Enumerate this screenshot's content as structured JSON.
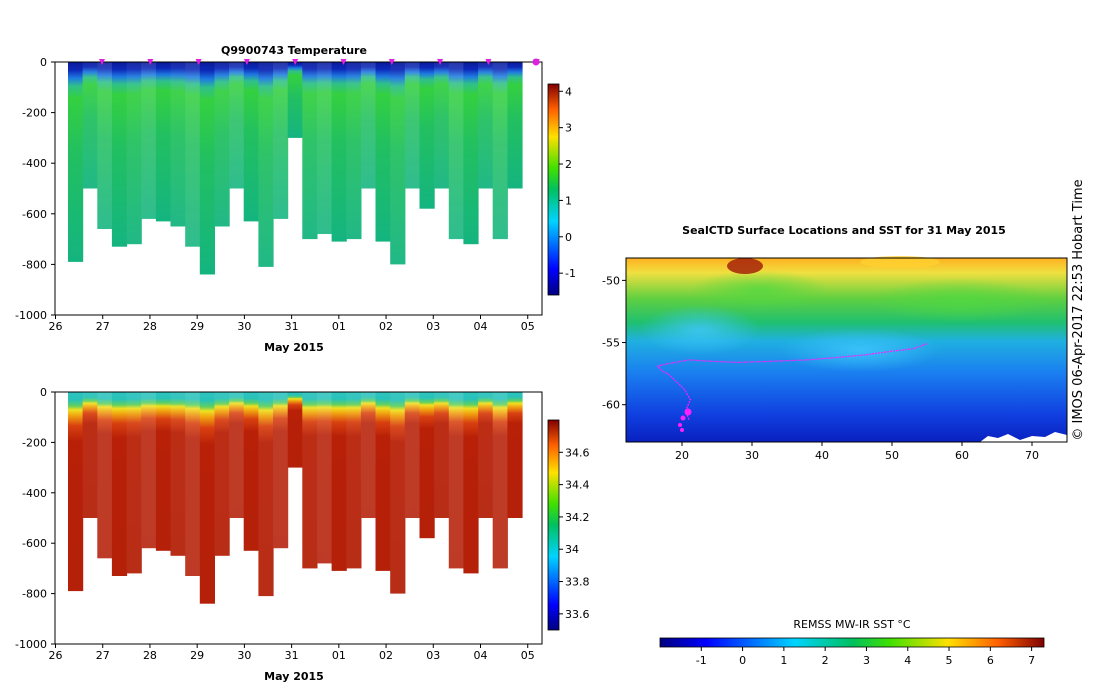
{
  "chart_data": [
    {
      "type": "heatmap",
      "title": "Q9900743  Temperature",
      "xlabel": "May 2015",
      "ylabel": "",
      "x_ticks": [
        "26",
        "27",
        "28",
        "29",
        "30",
        "31",
        "01",
        "02",
        "03",
        "04",
        "05"
      ],
      "y_ticks": [
        0,
        -200,
        -400,
        -600,
        -800,
        -1000
      ],
      "ylim": [
        -1000,
        0
      ],
      "colorbar": {
        "min": -1.6,
        "max": 4.2,
        "ticks": [
          4,
          3,
          2,
          1,
          0,
          -1
        ]
      },
      "profile_depths": [
        -790,
        -500,
        -660,
        -730,
        -720,
        -620,
        -630,
        -650,
        -730,
        -840,
        -650,
        -500,
        -630,
        -810,
        -620,
        -300,
        -700,
        -680,
        -710,
        -700,
        -500,
        -710,
        -800,
        -500,
        -580,
        -500,
        -700,
        -720,
        -500,
        -700,
        -500
      ],
      "surface_markers": 10
    },
    {
      "type": "heatmap",
      "title": "",
      "xlabel": "May 2015",
      "ylabel": "",
      "x_ticks": [
        "26",
        "27",
        "28",
        "29",
        "30",
        "31",
        "01",
        "02",
        "03",
        "04",
        "05"
      ],
      "y_ticks": [
        0,
        -200,
        -400,
        -600,
        -800,
        -1000
      ],
      "ylim": [
        -1000,
        0
      ],
      "colorbar": {
        "min": 33.5,
        "max": 34.8,
        "ticks": [
          "34.6",
          "34.4",
          "34.2",
          "34",
          "33.8",
          "33.6"
        ]
      },
      "profile_depths": [
        -790,
        -500,
        -660,
        -730,
        -720,
        -620,
        -630,
        -650,
        -730,
        -840,
        -650,
        -500,
        -630,
        -810,
        -620,
        -300,
        -700,
        -680,
        -710,
        -700,
        -500,
        -710,
        -800,
        -500,
        -580,
        -500,
        -700,
        -720,
        -500,
        -700,
        -500
      ]
    },
    {
      "type": "heatmap",
      "title": "SealCTD Surface Locations and SST for 31 May 2015",
      "xlabel": "",
      "ylabel": "",
      "x_ticks": [
        "20",
        "30",
        "40",
        "50",
        "60",
        "70"
      ],
      "y_ticks": [
        "-50",
        "-55",
        "-60"
      ],
      "xlim": [
        12,
        75
      ],
      "ylim": [
        -63,
        -48.2
      ],
      "colorbar": {
        "label": "REMSS MW-IR SST °C",
        "min": -2,
        "max": 7.3,
        "ticks": [
          "-1",
          "0",
          "1",
          "2",
          "3",
          "4",
          "5",
          "6",
          "7"
        ]
      },
      "track_note": "magenta track from ~21E -61S to ~55E -55S"
    }
  ],
  "side_caption": "© IMOS 06-Apr-2017 22:53 Hobart Time"
}
